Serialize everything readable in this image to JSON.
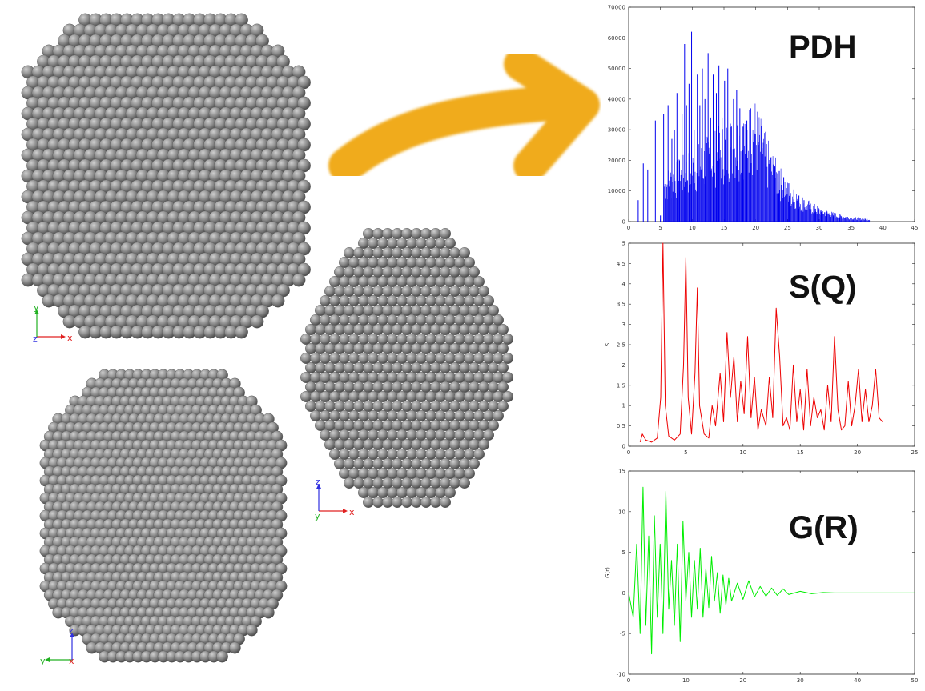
{
  "colors": {
    "atom_fill": "#8c8c8c",
    "atom_highlight": "#cfcfcf",
    "atom_shadow": "#4d4d4d",
    "arrow": "#f0ab1c",
    "pdh_series": "#0000ee",
    "sq_series": "#ee0000",
    "gr_series": "#00ee00",
    "axis_x": "#e02020",
    "axis_y": "#20b020",
    "axis_z": "#3030e0"
  },
  "views": [
    {
      "name": "top-left-view",
      "triad": {
        "h": "x",
        "v": "y",
        "corner": "z"
      }
    },
    {
      "name": "center-view",
      "triad": {
        "h": "x",
        "v": "z",
        "corner": "y"
      }
    },
    {
      "name": "bottom-left-view",
      "triad": {
        "h": "y",
        "v": "z",
        "corner": "x"
      }
    }
  ],
  "arrow": {
    "icon": "curved-arrow-icon"
  },
  "chart_data": [
    {
      "type": "bar",
      "title": "PDH",
      "xlabel": "",
      "ylabel": "",
      "xlim": [
        0,
        45
      ],
      "ylim": [
        0,
        70000
      ],
      "x_ticks": [
        "0",
        "5",
        "10",
        "15",
        "20",
        "25",
        "30",
        "35",
        "40",
        "45"
      ],
      "y_ticks": [
        "0",
        "10000",
        "20000",
        "30000",
        "40000",
        "50000",
        "60000",
        "70000"
      ],
      "grid": false,
      "series": [
        {
          "x": [
            1.5,
            2.3,
            3.0,
            4.2,
            5.0,
            5.5,
            6.2,
            6.8,
            7.2,
            7.6,
            8.0,
            8.4,
            8.8,
            9.1,
            9.5,
            9.9,
            10.3,
            10.8,
            11.2,
            11.6,
            12.0,
            12.5,
            12.9,
            13.3,
            13.8,
            14.2,
            14.7,
            15.1,
            15.6,
            16.0,
            16.5,
            17.0,
            17.5,
            18.0,
            18.6,
            19.2,
            19.8,
            20.4,
            21.0,
            21.6,
            22.3,
            23.0,
            23.7,
            24.4,
            25.2,
            26.0,
            26.8,
            27.6,
            28.5,
            29.4,
            30.3,
            31.2,
            32.2,
            33.2,
            34.3,
            35.4,
            36.5,
            37.5
          ],
          "values": [
            7000,
            19000,
            17000,
            33000,
            2000,
            35000,
            38000,
            27000,
            30000,
            42000,
            20000,
            35000,
            58000,
            38000,
            45000,
            62000,
            30000,
            48000,
            38000,
            50000,
            40000,
            55000,
            34000,
            48000,
            42000,
            51000,
            34000,
            46000,
            50000,
            32000,
            40000,
            43000,
            37000,
            31000,
            33000,
            37000,
            28000,
            26000,
            24000,
            22000,
            20000,
            18000,
            16500,
            14500,
            12500,
            10500,
            8500,
            7000,
            5500,
            4200,
            3200,
            2400,
            1700,
            1100,
            700,
            400,
            200,
            100
          ]
        }
      ]
    },
    {
      "type": "line",
      "title": "S(Q)",
      "xlabel": "",
      "ylabel": "S",
      "xlim": [
        0,
        25
      ],
      "ylim": [
        0,
        5
      ],
      "x_ticks": [
        "0",
        "5",
        "10",
        "15",
        "20",
        "25"
      ],
      "y_ticks": [
        "0",
        "0.5",
        "1",
        "1.5",
        "2",
        "2.5",
        "3",
        "3.5",
        "4",
        "4.5",
        "5"
      ],
      "grid": false,
      "series": [
        {
          "x": [
            1.0,
            1.2,
            1.5,
            2.0,
            2.5,
            2.8,
            3.0,
            3.2,
            3.5,
            4.0,
            4.5,
            4.8,
            5.0,
            5.2,
            5.5,
            5.8,
            6.0,
            6.2,
            6.6,
            7.0,
            7.3,
            7.6,
            8.0,
            8.3,
            8.6,
            8.9,
            9.2,
            9.5,
            9.8,
            10.1,
            10.4,
            10.7,
            11.0,
            11.3,
            11.6,
            12.0,
            12.3,
            12.6,
            12.9,
            13.2,
            13.5,
            13.8,
            14.1,
            14.4,
            14.7,
            15.0,
            15.3,
            15.6,
            15.9,
            16.2,
            16.5,
            16.8,
            17.1,
            17.4,
            17.7,
            18.0,
            18.3,
            18.6,
            18.9,
            19.2,
            19.5,
            19.8,
            20.1,
            20.4,
            20.7,
            21.0,
            21.3,
            21.6,
            21.9,
            22.2
          ],
          "values": [
            0.1,
            0.3,
            0.15,
            0.1,
            0.2,
            1.2,
            5.0,
            1.0,
            0.25,
            0.15,
            0.3,
            2.0,
            4.65,
            1.2,
            0.3,
            1.8,
            3.9,
            1.0,
            0.3,
            0.2,
            1.0,
            0.5,
            1.8,
            0.6,
            2.8,
            1.2,
            2.2,
            0.6,
            1.6,
            0.8,
            2.7,
            0.7,
            1.7,
            0.4,
            0.9,
            0.5,
            1.7,
            0.7,
            3.4,
            2.2,
            0.5,
            0.7,
            0.4,
            2.0,
            0.6,
            1.4,
            0.4,
            1.9,
            0.5,
            1.2,
            0.7,
            0.9,
            0.4,
            1.5,
            0.6,
            2.7,
            0.9,
            0.4,
            0.5,
            1.6,
            0.5,
            1.0,
            1.9,
            0.6,
            1.4,
            0.6,
            1.0,
            1.9,
            0.7,
            0.6
          ]
        }
      ]
    },
    {
      "type": "line",
      "title": "G(R)",
      "xlabel": "",
      "ylabel": "G(r)",
      "xlim": [
        0,
        50
      ],
      "ylim": [
        -10,
        15
      ],
      "x_ticks": [
        "0",
        "10",
        "20",
        "30",
        "40",
        "50"
      ],
      "y_ticks": [
        "-10",
        "-5",
        "0",
        "5",
        "10",
        "15"
      ],
      "grid": false,
      "series": [
        {
          "x": [
            0,
            0.8,
            1.4,
            2.0,
            2.5,
            3.0,
            3.5,
            4.0,
            4.5,
            5.0,
            5.5,
            6.0,
            6.5,
            7.0,
            7.5,
            8.0,
            8.5,
            9.0,
            9.5,
            10.0,
            10.5,
            11.0,
            11.5,
            12.0,
            12.5,
            13.0,
            13.5,
            14.0,
            14.5,
            15.0,
            15.5,
            16.0,
            16.5,
            17.0,
            17.5,
            18.0,
            19.0,
            20.0,
            21.0,
            22.0,
            23.0,
            24.0,
            25.0,
            26.0,
            27.0,
            28.0,
            30.0,
            32.0,
            34.0,
            36.0,
            40.0,
            45.0,
            50.0
          ],
          "values": [
            0,
            -3,
            6,
            -5,
            13,
            -4,
            7,
            -7.5,
            9.5,
            -3,
            6,
            -5,
            12.5,
            -2,
            4,
            -4,
            6,
            -6,
            8.8,
            -1,
            5,
            -3,
            4,
            -2,
            5.5,
            -3,
            3,
            -1.8,
            4.5,
            -1,
            2.5,
            -2.5,
            2.2,
            -1.5,
            1.8,
            -1,
            1.2,
            -0.8,
            1.5,
            -0.5,
            0.8,
            -0.4,
            0.6,
            -0.3,
            0.5,
            -0.2,
            0.2,
            -0.1,
            0.05,
            0,
            0,
            0,
            0
          ]
        }
      ]
    }
  ]
}
